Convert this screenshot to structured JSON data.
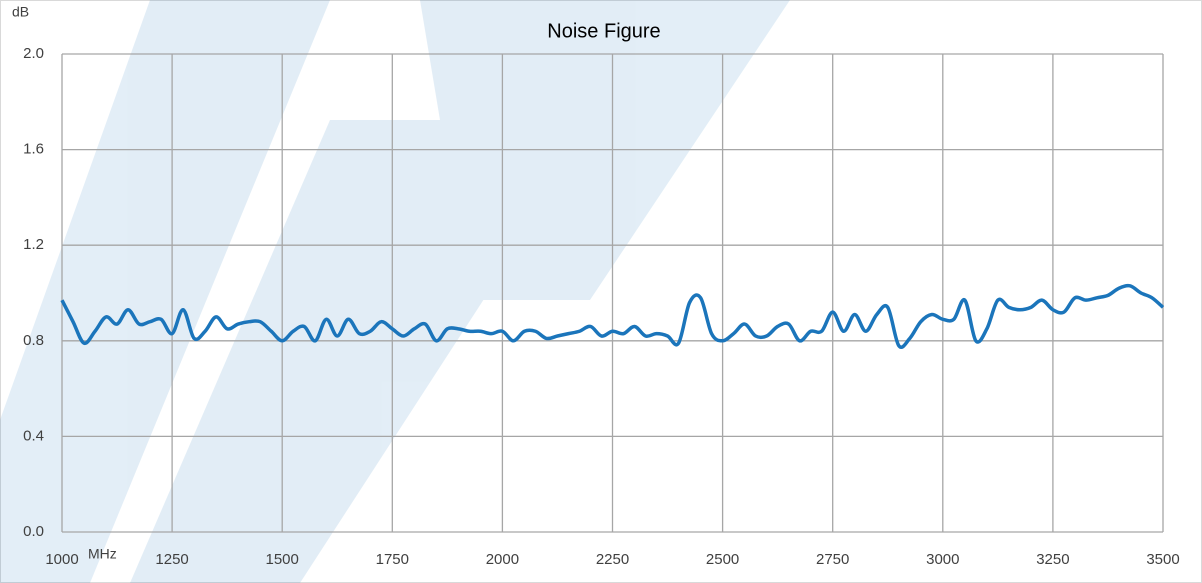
{
  "chart_data": {
    "type": "line",
    "title": "Noise Figure",
    "y_label": "dB",
    "x_label": "MHz",
    "x": [
      1000,
      1025,
      1050,
      1075,
      1100,
      1125,
      1150,
      1175,
      1200,
      1225,
      1250,
      1275,
      1300,
      1325,
      1350,
      1375,
      1400,
      1425,
      1450,
      1475,
      1500,
      1525,
      1550,
      1575,
      1600,
      1625,
      1650,
      1675,
      1700,
      1725,
      1750,
      1775,
      1800,
      1825,
      1850,
      1875,
      1900,
      1925,
      1950,
      1975,
      2000,
      2025,
      2050,
      2075,
      2100,
      2125,
      2150,
      2175,
      2200,
      2225,
      2250,
      2275,
      2300,
      2325,
      2350,
      2375,
      2400,
      2425,
      2450,
      2475,
      2500,
      2525,
      2550,
      2575,
      2600,
      2625,
      2650,
      2675,
      2700,
      2725,
      2750,
      2775,
      2800,
      2825,
      2850,
      2875,
      2900,
      2925,
      2950,
      2975,
      3000,
      3025,
      3050,
      3075,
      3100,
      3125,
      3150,
      3175,
      3200,
      3225,
      3250,
      3275,
      3300,
      3325,
      3350,
      3375,
      3400,
      3425,
      3450,
      3475,
      3500
    ],
    "series": [
      {
        "name": "Noise Figure",
        "color": "#1b75bb",
        "values": [
          0.97,
          0.88,
          0.79,
          0.84,
          0.9,
          0.87,
          0.93,
          0.87,
          0.88,
          0.89,
          0.83,
          0.93,
          0.81,
          0.84,
          0.9,
          0.85,
          0.87,
          0.88,
          0.88,
          0.84,
          0.8,
          0.84,
          0.86,
          0.8,
          0.89,
          0.82,
          0.89,
          0.83,
          0.84,
          0.88,
          0.85,
          0.82,
          0.85,
          0.87,
          0.8,
          0.85,
          0.85,
          0.84,
          0.84,
          0.83,
          0.84,
          0.8,
          0.84,
          0.84,
          0.81,
          0.82,
          0.83,
          0.84,
          0.86,
          0.82,
          0.84,
          0.83,
          0.86,
          0.82,
          0.83,
          0.82,
          0.79,
          0.96,
          0.98,
          0.83,
          0.8,
          0.83,
          0.87,
          0.82,
          0.82,
          0.86,
          0.87,
          0.8,
          0.84,
          0.84,
          0.92,
          0.84,
          0.91,
          0.84,
          0.91,
          0.94,
          0.78,
          0.81,
          0.88,
          0.91,
          0.89,
          0.89,
          0.97,
          0.8,
          0.85,
          0.97,
          0.94,
          0.93,
          0.94,
          0.97,
          0.93,
          0.92,
          0.98,
          0.97,
          0.98,
          0.99,
          1.02,
          1.03,
          1.0,
          0.98,
          0.94
        ]
      }
    ],
    "xlim": [
      1000,
      3500
    ],
    "xticks": [
      1000,
      1250,
      1500,
      1750,
      2000,
      2250,
      2500,
      2750,
      3000,
      3250,
      3500
    ],
    "ylim": [
      0,
      2.0
    ],
    "yticks": [
      {
        "value": 0,
        "label": "0.0"
      },
      0.4,
      0.8,
      1.2,
      1.6,
      {
        "value": 2.0,
        "label": "2.0"
      }
    ],
    "grid": true
  }
}
